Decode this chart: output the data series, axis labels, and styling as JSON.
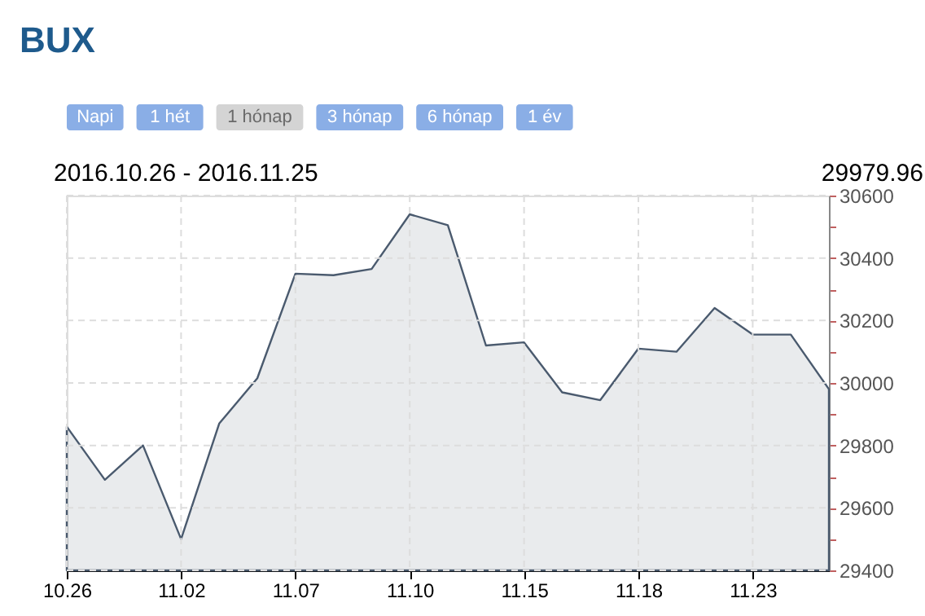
{
  "chart_data": {
    "type": "area",
    "title": "BUX",
    "categories": [
      "10.26",
      null,
      null,
      "11.02",
      null,
      null,
      "11.07",
      null,
      null,
      "11.10",
      null,
      null,
      "11.15",
      null,
      null,
      "11.18",
      null,
      null,
      "11.23",
      null,
      null
    ],
    "series": [
      {
        "color": "#4a5a6e",
        "values": [
          29860,
          29690,
          29800,
          29500,
          29870,
          30015,
          30350,
          30345,
          30365,
          30540,
          30505,
          30120,
          30130,
          29970,
          29945,
          30110,
          30100,
          30240,
          30155,
          30155,
          29980
        ]
      }
    ],
    "ylim": [
      29400,
      30600
    ],
    "yticks": [
      29400,
      {
        "value": 29500,
        "label": null
      },
      29600,
      {
        "value": 29700,
        "label": null
      },
      29800,
      {
        "value": 29900,
        "label": null
      },
      30000,
      {
        "value": 30100,
        "label": null
      },
      30200,
      {
        "value": 30300,
        "label": null
      },
      30400,
      {
        "value": 30500,
        "label": null
      },
      30600
    ],
    "grid": true,
    "annotations": [
      "2016.10.26 - 2016.11.25",
      "29979.96",
      "Napi",
      "1 hét",
      "1 hónap",
      "3 hónap",
      "6 hónap",
      "1 év"
    ]
  }
}
